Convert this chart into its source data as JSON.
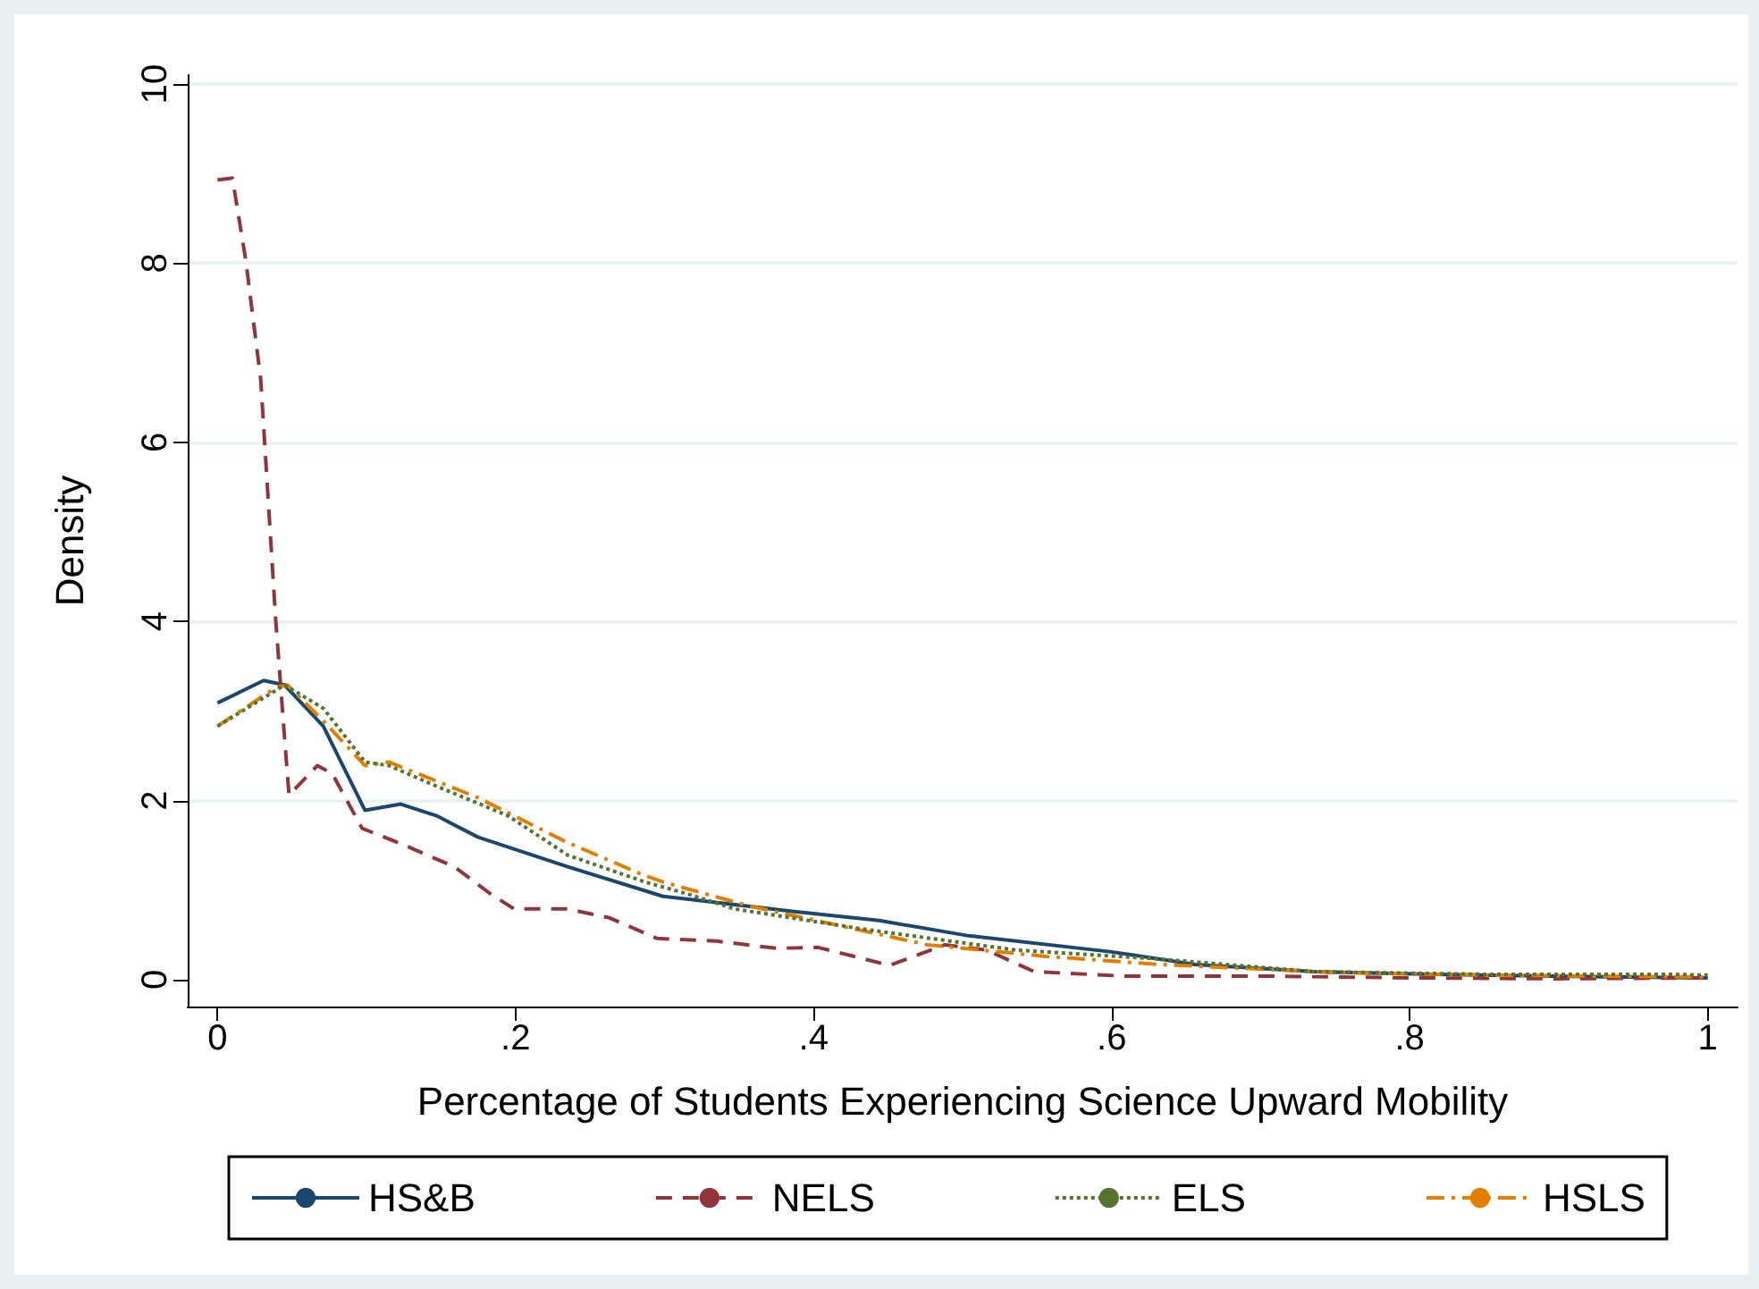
{
  "chart_data": {
    "type": "line",
    "xlabel": "Percentage of Students Experiencing Science Upward Mobility",
    "ylabel": "Density",
    "xlim": [
      -0.02,
      1.02
    ],
    "ylim": [
      -0.3,
      10.1
    ],
    "xticks": [
      0,
      {
        "value": 0.2,
        "label": ".2"
      },
      {
        "value": 0.4,
        "label": ".4"
      },
      {
        "value": 0.6,
        "label": ".6"
      },
      {
        "value": 0.8,
        "label": ".8"
      },
      1
    ],
    "yticks": [
      0,
      2,
      4,
      6,
      8,
      10
    ],
    "grid": "y",
    "legend": "bottom",
    "marker": "none",
    "series": [
      {
        "name": "HS&B",
        "color": "#1a476f",
        "line_style": "solid",
        "x": [
          0,
          0.031,
          0.045,
          0.071,
          0.099,
          0.123,
          0.147,
          0.175,
          0.235,
          0.299,
          0.387,
          0.444,
          0.504,
          0.6,
          0.656,
          0.736,
          0.816,
          0.896,
          1
        ],
        "values": [
          3.09,
          3.34,
          3.29,
          2.83,
          1.89,
          1.96,
          1.83,
          1.59,
          1.26,
          0.93,
          0.76,
          0.66,
          0.49,
          0.31,
          0.17,
          0.09,
          0.06,
          0.04,
          0.02
        ]
      },
      {
        "name": "NELS",
        "color": "#90353b",
        "line_style": "dashed",
        "x": [
          0,
          0.01,
          0.019,
          0.029,
          0.039,
          0.045,
          0.048,
          0.067,
          0.077,
          0.097,
          0.127,
          0.159,
          0.183,
          0.199,
          0.235,
          0.263,
          0.295,
          0.335,
          0.375,
          0.403,
          0.451,
          0.488,
          0.516,
          0.548,
          0.608,
          0.7,
          0.8,
          0.9,
          1
        ],
        "values": [
          8.93,
          8.95,
          8.03,
          6.7,
          4.03,
          2.7,
          2.06,
          2.39,
          2.3,
          1.69,
          1.49,
          1.26,
          0.96,
          0.79,
          0.79,
          0.69,
          0.46,
          0.43,
          0.35,
          0.36,
          0.16,
          0.39,
          0.33,
          0.09,
          0.04,
          0.04,
          0.02,
          0.01,
          0.02
        ]
      },
      {
        "name": "ELS",
        "color": "#55752f",
        "line_style": "dotted",
        "x": [
          0,
          0.045,
          0.071,
          0.099,
          0.115,
          0.147,
          0.195,
          0.235,
          0.287,
          0.315,
          0.347,
          0.435,
          0.536,
          0.632,
          0.736,
          0.85,
          0.976,
          1
        ],
        "values": [
          2.83,
          3.29,
          3.03,
          2.43,
          2.39,
          2.16,
          1.83,
          1.39,
          1.09,
          0.96,
          0.79,
          0.56,
          0.33,
          0.23,
          0.09,
          0.06,
          0.06,
          0.05
        ]
      },
      {
        "name": "HSLS",
        "color": "#e37e00",
        "line_style": "dashdot",
        "x": [
          0,
          0.039,
          0.047,
          0.071,
          0.099,
          0.115,
          0.175,
          0.235,
          0.287,
          0.299,
          0.355,
          0.476,
          0.556,
          0.632,
          0.75,
          0.85,
          1
        ],
        "values": [
          2.83,
          3.26,
          3.29,
          2.89,
          2.39,
          2.43,
          2.03,
          1.53,
          1.16,
          1.09,
          0.83,
          0.39,
          0.26,
          0.17,
          0.08,
          0.05,
          0.03
        ]
      }
    ]
  }
}
